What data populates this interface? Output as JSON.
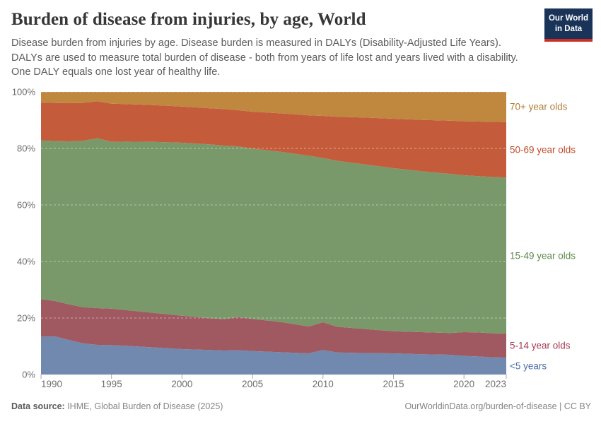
{
  "header": {
    "title": "Burden of disease from injuries, by age, World",
    "subtitle": "Disease burden from injuries by age. Disease burden is measured in DALYs (Disability-Adjusted Life Years). DALYs are used to measure total burden of disease - both from years of life lost and years lived with a disability. One DALY equals one lost year of healthy life.",
    "logo": {
      "line1": "Our World",
      "line2": "in Data",
      "bg_color": "#1a3358",
      "bar_color": "#ce2d24"
    }
  },
  "chart_data": {
    "type": "area",
    "stacked_percent": true,
    "title": "Burden of disease from injuries, by age, World",
    "x": [
      1990,
      1991,
      1992,
      1993,
      1994,
      1995,
      1996,
      1998,
      2000,
      2002,
      2003,
      2004,
      2005,
      2007,
      2009,
      2010,
      2011,
      2013,
      2015,
      2017,
      2019,
      2020,
      2021,
      2022,
      2023
    ],
    "series": [
      {
        "name": "<5 years",
        "color": "#7189ae",
        "label_color": "#4a6da8",
        "values": [
          13.4,
          13.5,
          12.2,
          11.0,
          10.5,
          10.4,
          10.2,
          9.6,
          9.0,
          8.7,
          8.5,
          8.6,
          8.3,
          7.9,
          7.5,
          8.7,
          7.8,
          7.6,
          7.5,
          7.2,
          7.0,
          6.6,
          6.4,
          6.1,
          6.0
        ]
      },
      {
        "name": "5-14 year olds",
        "color": "#a05861",
        "label_color": "#a43a54",
        "values": [
          13.3,
          12.5,
          12.6,
          12.8,
          13.0,
          12.9,
          12.6,
          12.2,
          11.8,
          11.2,
          11.1,
          11.7,
          11.4,
          10.7,
          9.5,
          9.8,
          9.1,
          8.5,
          7.8,
          7.8,
          7.7,
          8.4,
          8.5,
          8.5,
          8.5
        ]
      },
      {
        "name": "15-49 year olds",
        "color": "#79996a",
        "label_color": "#5d8a4d",
        "values": [
          56.1,
          56.6,
          57.7,
          58.9,
          60.1,
          59.0,
          59.6,
          60.5,
          61.2,
          61.5,
          61.4,
          60.4,
          60.2,
          60.2,
          60.4,
          58.1,
          58.7,
          58.2,
          57.7,
          56.9,
          56.3,
          55.5,
          55.3,
          55.3,
          55.2
        ]
      },
      {
        "name": "50-69 year olds",
        "color": "#c45c3c",
        "label_color": "#c04a2b",
        "values": [
          13.4,
          13.5,
          13.5,
          13.4,
          13.1,
          13.5,
          13.3,
          13.0,
          12.8,
          12.8,
          12.9,
          12.8,
          13.1,
          13.6,
          14.3,
          14.9,
          15.6,
          16.6,
          17.5,
          18.2,
          18.8,
          19.1,
          19.3,
          19.5,
          19.6
        ]
      },
      {
        "name": "70+ year olds",
        "color": "#c0873e",
        "label_color": "#b07c35",
        "values": [
          3.8,
          3.9,
          4.0,
          3.9,
          3.3,
          4.2,
          4.3,
          4.7,
          5.2,
          5.8,
          6.1,
          6.5,
          7.0,
          7.6,
          8.3,
          8.5,
          8.8,
          9.1,
          9.5,
          9.9,
          10.2,
          10.4,
          10.5,
          10.6,
          10.7
        ]
      }
    ],
    "ylim": [
      0,
      100
    ],
    "yticks": [
      0,
      20,
      40,
      60,
      80,
      100
    ],
    "ytick_labels": [
      "0%",
      "20%",
      "40%",
      "60%",
      "80%",
      "100%"
    ],
    "xticks": [
      1990,
      1995,
      2000,
      2005,
      2010,
      2015,
      2020,
      2023
    ],
    "grid": "dashed",
    "legend_position": "right"
  },
  "footer": {
    "datasource_label": "Data source:",
    "datasource_value": " IHME, Global Burden of Disease (2025)",
    "credit": "OurWorldinData.org/burden-of-disease | CC BY"
  }
}
